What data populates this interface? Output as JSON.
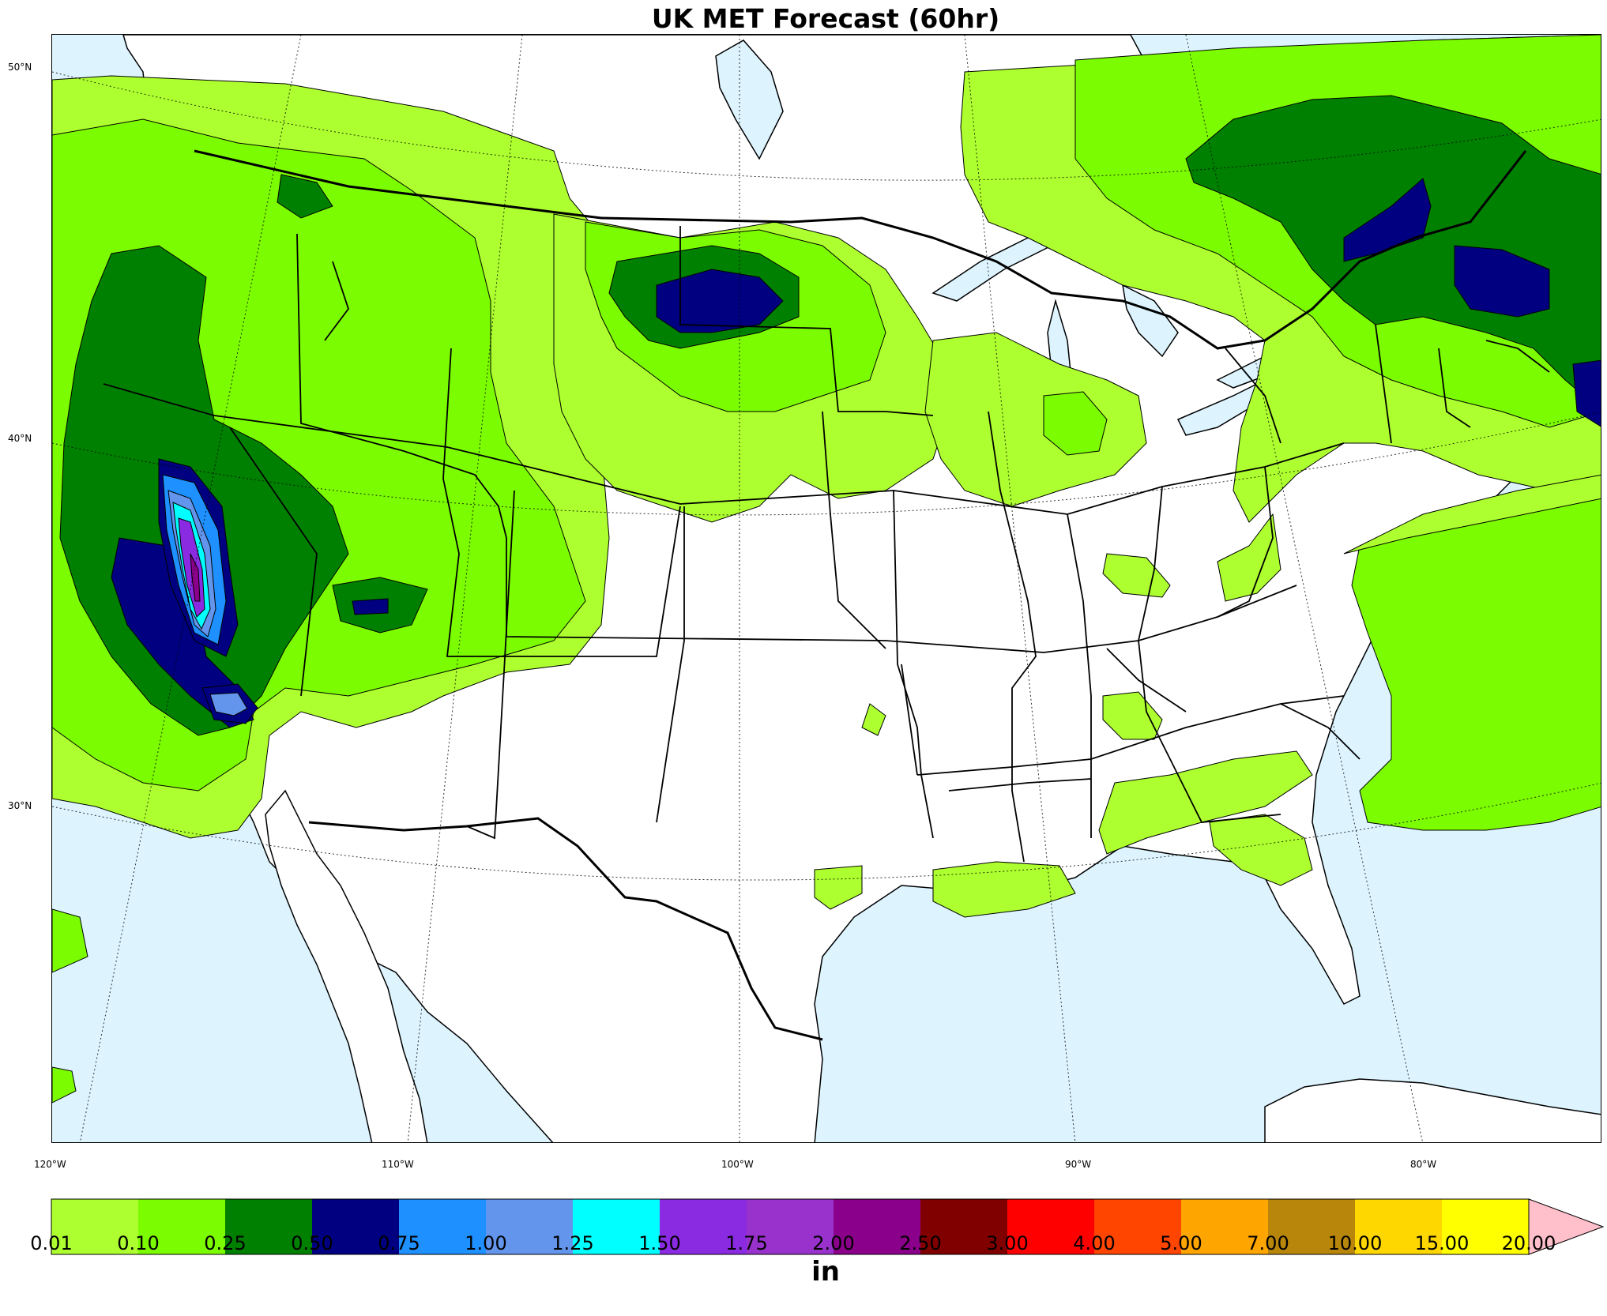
{
  "title": "UK MET Forecast (60hr)",
  "map": {
    "lat_labels": [
      "50°N",
      "40°N",
      "30°N"
    ],
    "lon_labels": [
      "120°W",
      "110°W",
      "100°W",
      "90°W",
      "80°W"
    ],
    "colors": {
      "land": "#ffffff",
      "water": "#ddf4ff",
      "border": "#000000"
    }
  },
  "colorbar": {
    "unit": "in",
    "ticks": [
      "0.01",
      "0.10",
      "0.25",
      "0.50",
      "0.75",
      "1.00",
      "1.25",
      "1.50",
      "1.75",
      "2.00",
      "2.50",
      "3.00",
      "4.00",
      "5.00",
      "7.00",
      "10.00",
      "15.00",
      "20.00"
    ],
    "colors": [
      "#adff2f",
      "#7cfc00",
      "#008000",
      "#000080",
      "#1e90ff",
      "#6495ed",
      "#00ffff",
      "#8a2be2",
      "#9932cc",
      "#8b008b",
      "#800000",
      "#ff0000",
      "#ff4500",
      "#ffa500",
      "#b8860b",
      "#ffd700",
      "#ffff00"
    ],
    "extend_color": "#ffc0cb"
  }
}
